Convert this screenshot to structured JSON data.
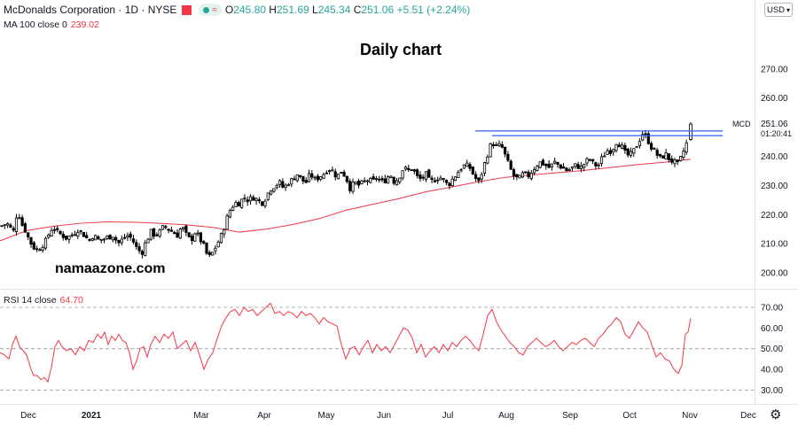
{
  "header": {
    "symbol": "McDonalds Corporation · 1D · NYSE",
    "ohlc_o_label": "O",
    "ohlc_o": "245.80",
    "ohlc_h_label": "H",
    "ohlc_h": "251.69",
    "ohlc_l_label": "L",
    "ohlc_l": "245.34",
    "ohlc_c_label": "C",
    "ohlc_c": "251.06",
    "ohlc_change": "+5.51 (+2.24%)",
    "pill_text": "≈"
  },
  "indicators": {
    "ma_label": "MA 100 close 0",
    "ma_value": "239.02",
    "rsi_label": "RSI 14 close",
    "rsi_value": "64.70"
  },
  "currency": "USD",
  "currency_chevron": "▾",
  "settings_icon": "⚙",
  "annotations": {
    "title": "Daily chart",
    "watermark": "namaazone.com"
  },
  "colors": {
    "up": "#26a69a",
    "candle": "#000000",
    "ma": "#f23645",
    "rsi": "#f23645",
    "hline": "#2962ff",
    "price_tag": "#26a69a"
  },
  "chart_data": [
    {
      "type": "candlestick",
      "symbol": "MCD",
      "timeframe": "1D",
      "ylim": [
        197,
        283
      ],
      "price_ticks": [
        "270.00",
        "260.00",
        "250.00",
        "240.00",
        "230.00",
        "220.00",
        "210.00",
        "200.00"
      ],
      "x_labels": [
        "Dec",
        "2021",
        "Mar",
        "Apr",
        "May",
        "Jun",
        "Jul",
        "Aug",
        "Sep",
        "Oct",
        "Nov",
        "Dec"
      ],
      "last_price": "251.06",
      "last_price_label": "MCD",
      "countdown": "01:20:41",
      "horizontal_lines": [
        248.7,
        247.1
      ],
      "close_path": [
        [
          0,
          216
        ],
        [
          8,
          217
        ],
        [
          15,
          214
        ],
        [
          20,
          222
        ],
        [
          24,
          217
        ],
        [
          28,
          215
        ],
        [
          32,
          212
        ],
        [
          37,
          209
        ],
        [
          42,
          208
        ],
        [
          46,
          209
        ],
        [
          52,
          211
        ],
        [
          56,
          214
        ],
        [
          60,
          216
        ],
        [
          64,
          214
        ],
        [
          70,
          213
        ],
        [
          75,
          212
        ],
        [
          82,
          213
        ],
        [
          88,
          215
        ],
        [
          95,
          213
        ],
        [
          100,
          211
        ],
        [
          105,
          213
        ],
        [
          112,
          211
        ],
        [
          120,
          212
        ],
        [
          128,
          213
        ],
        [
          133,
          210
        ],
        [
          140,
          212
        ],
        [
          145,
          213
        ],
        [
          150,
          211
        ],
        [
          155,
          208
        ],
        [
          160,
          207
        ],
        [
          165,
          211
        ],
        [
          170,
          214
        ],
        [
          175,
          213
        ],
        [
          180,
          214
        ],
        [
          185,
          216
        ],
        [
          190,
          215
        ],
        [
          195,
          214
        ],
        [
          200,
          213
        ],
        [
          205,
          216
        ],
        [
          210,
          213
        ],
        [
          215,
          211
        ],
        [
          220,
          214
        ],
        [
          225,
          212
        ],
        [
          230,
          209
        ],
        [
          235,
          205
        ],
        [
          240,
          207
        ],
        [
          245,
          210
        ],
        [
          250,
          213
        ],
        [
          255,
          218
        ],
        [
          260,
          222
        ],
        [
          265,
          224
        ],
        [
          270,
          224
        ],
        [
          275,
          226
        ],
        [
          280,
          225
        ],
        [
          286,
          226
        ],
        [
          290,
          225
        ],
        [
          295,
          224
        ],
        [
          300,
          226
        ],
        [
          305,
          229
        ],
        [
          310,
          230
        ],
        [
          315,
          231
        ],
        [
          320,
          229
        ],
        [
          325,
          231
        ],
        [
          330,
          232
        ],
        [
          335,
          234
        ],
        [
          340,
          232
        ],
        [
          345,
          231
        ],
        [
          350,
          234
        ],
        [
          355,
          232
        ],
        [
          360,
          233
        ],
        [
          365,
          234
        ],
        [
          370,
          236
        ],
        [
          375,
          235
        ],
        [
          380,
          233
        ],
        [
          385,
          235
        ],
        [
          390,
          233
        ],
        [
          395,
          229
        ],
        [
          400,
          231
        ],
        [
          405,
          230
        ],
        [
          410,
          231
        ],
        [
          415,
          232
        ],
        [
          420,
          231
        ],
        [
          425,
          233
        ],
        [
          430,
          231
        ],
        [
          435,
          232
        ],
        [
          440,
          234
        ],
        [
          445,
          231
        ],
        [
          450,
          233
        ],
        [
          455,
          236
        ],
        [
          460,
          235
        ],
        [
          465,
          236
        ],
        [
          470,
          233
        ],
        [
          475,
          232
        ],
        [
          480,
          234
        ],
        [
          485,
          231
        ],
        [
          490,
          232
        ],
        [
          495,
          233
        ],
        [
          500,
          232
        ],
        [
          505,
          230
        ],
        [
          510,
          232
        ],
        [
          515,
          234
        ],
        [
          520,
          236
        ],
        [
          525,
          237
        ],
        [
          530,
          236
        ],
        [
          535,
          233
        ],
        [
          540,
          231
        ],
        [
          545,
          236
        ],
        [
          550,
          241
        ],
        [
          555,
          245
        ],
        [
          560,
          243
        ],
        [
          565,
          244
        ],
        [
          570,
          240
        ],
        [
          575,
          236
        ],
        [
          580,
          233
        ],
        [
          585,
          232
        ],
        [
          590,
          234
        ],
        [
          595,
          233
        ],
        [
          600,
          235
        ],
        [
          605,
          237
        ],
        [
          610,
          238
        ],
        [
          615,
          237
        ],
        [
          620,
          236
        ],
        [
          625,
          238
        ],
        [
          630,
          237
        ],
        [
          635,
          236
        ],
        [
          640,
          235
        ],
        [
          645,
          236
        ],
        [
          650,
          237
        ],
        [
          655,
          236
        ],
        [
          660,
          238
        ],
        [
          665,
          239
        ],
        [
          670,
          237
        ],
        [
          675,
          237
        ],
        [
          680,
          240
        ],
        [
          685,
          242
        ],
        [
          690,
          242
        ],
        [
          695,
          245
        ],
        [
          700,
          244
        ],
        [
          705,
          241
        ],
        [
          710,
          240
        ],
        [
          715,
          242
        ],
        [
          720,
          245
        ],
        [
          725,
          248
        ],
        [
          730,
          246
        ],
        [
          735,
          243
        ],
        [
          740,
          241
        ],
        [
          745,
          239
        ],
        [
          750,
          241
        ],
        [
          755,
          239
        ],
        [
          760,
          238
        ],
        [
          765,
          237
        ],
        [
          770,
          241
        ],
        [
          775,
          245
        ],
        [
          779,
          251
        ]
      ],
      "ma100_path": [
        [
          0,
          211
        ],
        [
          30,
          214.5
        ],
        [
          60,
          216
        ],
        [
          90,
          217
        ],
        [
          120,
          217.5
        ],
        [
          150,
          217.4
        ],
        [
          180,
          217
        ],
        [
          210,
          216.5
        ],
        [
          240,
          215.6
        ],
        [
          270,
          214
        ],
        [
          300,
          215
        ],
        [
          330,
          216.6
        ],
        [
          360,
          218.6
        ],
        [
          390,
          221.5
        ],
        [
          420,
          223.5
        ],
        [
          450,
          225.5
        ],
        [
          480,
          227.8
        ],
        [
          510,
          229.5
        ],
        [
          540,
          231.3
        ],
        [
          570,
          232.8
        ],
        [
          600,
          233.6
        ],
        [
          630,
          234.4
        ],
        [
          660,
          235.2
        ],
        [
          690,
          236.2
        ],
        [
          720,
          237.2
        ],
        [
          750,
          238
        ],
        [
          779,
          239
        ]
      ]
    },
    {
      "type": "line",
      "name": "RSI 14 close",
      "ylim": [
        25,
        73
      ],
      "y_ticks": [
        "70.00",
        "60.00",
        "50.00",
        "40.00",
        "30.00"
      ],
      "levels": [
        70,
        50,
        30
      ],
      "values_path": [
        [
          0,
          48
        ],
        [
          5,
          47
        ],
        [
          10,
          45
        ],
        [
          14,
          52
        ],
        [
          18,
          56
        ],
        [
          22,
          51
        ],
        [
          26,
          49
        ],
        [
          30,
          47
        ],
        [
          35,
          40
        ],
        [
          38,
          37
        ],
        [
          42,
          37
        ],
        [
          46,
          35
        ],
        [
          50,
          36
        ],
        [
          54,
          34
        ],
        [
          58,
          41
        ],
        [
          62,
          51
        ],
        [
          66,
          54
        ],
        [
          70,
          51
        ],
        [
          75,
          49
        ],
        [
          80,
          50
        ],
        [
          85,
          47
        ],
        [
          90,
          51
        ],
        [
          95,
          49
        ],
        [
          100,
          54
        ],
        [
          105,
          53
        ],
        [
          110,
          57
        ],
        [
          114,
          55
        ],
        [
          118,
          58
        ],
        [
          122,
          52
        ],
        [
          126,
          56
        ],
        [
          130,
          54
        ],
        [
          134,
          57
        ],
        [
          138,
          54
        ],
        [
          142,
          53
        ],
        [
          146,
          48
        ],
        [
          150,
          40
        ],
        [
          154,
          44
        ],
        [
          158,
          50
        ],
        [
          162,
          51
        ],
        [
          166,
          46
        ],
        [
          170,
          52
        ],
        [
          175,
          56
        ],
        [
          180,
          53
        ],
        [
          185,
          57
        ],
        [
          190,
          55
        ],
        [
          195,
          58
        ],
        [
          200,
          50
        ],
        [
          205,
          52
        ],
        [
          210,
          54
        ],
        [
          215,
          49
        ],
        [
          220,
          53
        ],
        [
          225,
          47
        ],
        [
          230,
          40
        ],
        [
          235,
          45
        ],
        [
          240,
          48
        ],
        [
          245,
          55
        ],
        [
          250,
          61
        ],
        [
          255,
          65
        ],
        [
          260,
          68
        ],
        [
          265,
          69
        ],
        [
          270,
          66
        ],
        [
          275,
          70
        ],
        [
          280,
          68
        ],
        [
          285,
          69
        ],
        [
          290,
          66
        ],
        [
          295,
          68
        ],
        [
          300,
          70
        ],
        [
          305,
          72
        ],
        [
          310,
          67
        ],
        [
          315,
          68
        ],
        [
          320,
          66
        ],
        [
          325,
          68
        ],
        [
          330,
          67
        ],
        [
          335,
          65
        ],
        [
          340,
          68
        ],
        [
          345,
          66
        ],
        [
          350,
          67
        ],
        [
          355,
          65
        ],
        [
          360,
          62
        ],
        [
          365,
          65
        ],
        [
          370,
          63
        ],
        [
          375,
          62
        ],
        [
          380,
          61
        ],
        [
          385,
          52
        ],
        [
          390,
          45
        ],
        [
          395,
          50
        ],
        [
          400,
          51
        ],
        [
          405,
          47
        ],
        [
          410,
          51
        ],
        [
          415,
          54
        ],
        [
          420,
          48
        ],
        [
          425,
          52
        ],
        [
          430,
          49
        ],
        [
          435,
          51
        ],
        [
          440,
          48
        ],
        [
          445,
          52
        ],
        [
          450,
          56
        ],
        [
          455,
          60
        ],
        [
          460,
          59
        ],
        [
          465,
          55
        ],
        [
          470,
          48
        ],
        [
          475,
          52
        ],
        [
          480,
          46
        ],
        [
          485,
          49
        ],
        [
          490,
          51
        ],
        [
          495,
          48
        ],
        [
          500,
          52
        ],
        [
          505,
          49
        ],
        [
          510,
          53
        ],
        [
          515,
          51
        ],
        [
          520,
          54
        ],
        [
          525,
          56
        ],
        [
          530,
          54
        ],
        [
          535,
          51
        ],
        [
          540,
          49
        ],
        [
          545,
          57
        ],
        [
          550,
          66
        ],
        [
          555,
          69
        ],
        [
          560,
          63
        ],
        [
          565,
          59
        ],
        [
          570,
          56
        ],
        [
          575,
          53
        ],
        [
          580,
          51
        ],
        [
          585,
          48
        ],
        [
          590,
          47
        ],
        [
          595,
          51
        ],
        [
          600,
          53
        ],
        [
          605,
          55
        ],
        [
          610,
          53
        ],
        [
          615,
          51
        ],
        [
          620,
          52
        ],
        [
          625,
          54
        ],
        [
          630,
          51
        ],
        [
          635,
          49
        ],
        [
          640,
          51
        ],
        [
          645,
          53
        ],
        [
          650,
          52
        ],
        [
          655,
          54
        ],
        [
          660,
          55
        ],
        [
          665,
          53
        ],
        [
          670,
          51
        ],
        [
          675,
          55
        ],
        [
          680,
          57
        ],
        [
          685,
          60
        ],
        [
          690,
          62
        ],
        [
          695,
          65
        ],
        [
          700,
          63
        ],
        [
          705,
          57
        ],
        [
          710,
          55
        ],
        [
          715,
          59
        ],
        [
          720,
          63
        ],
        [
          725,
          60
        ],
        [
          730,
          58
        ],
        [
          735,
          52
        ],
        [
          740,
          46
        ],
        [
          745,
          48
        ],
        [
          750,
          45
        ],
        [
          755,
          44
        ],
        [
          760,
          40
        ],
        [
          765,
          38
        ],
        [
          769,
          42
        ],
        [
          773,
          57
        ],
        [
          776,
          58
        ],
        [
          779,
          64.7
        ]
      ]
    }
  ]
}
